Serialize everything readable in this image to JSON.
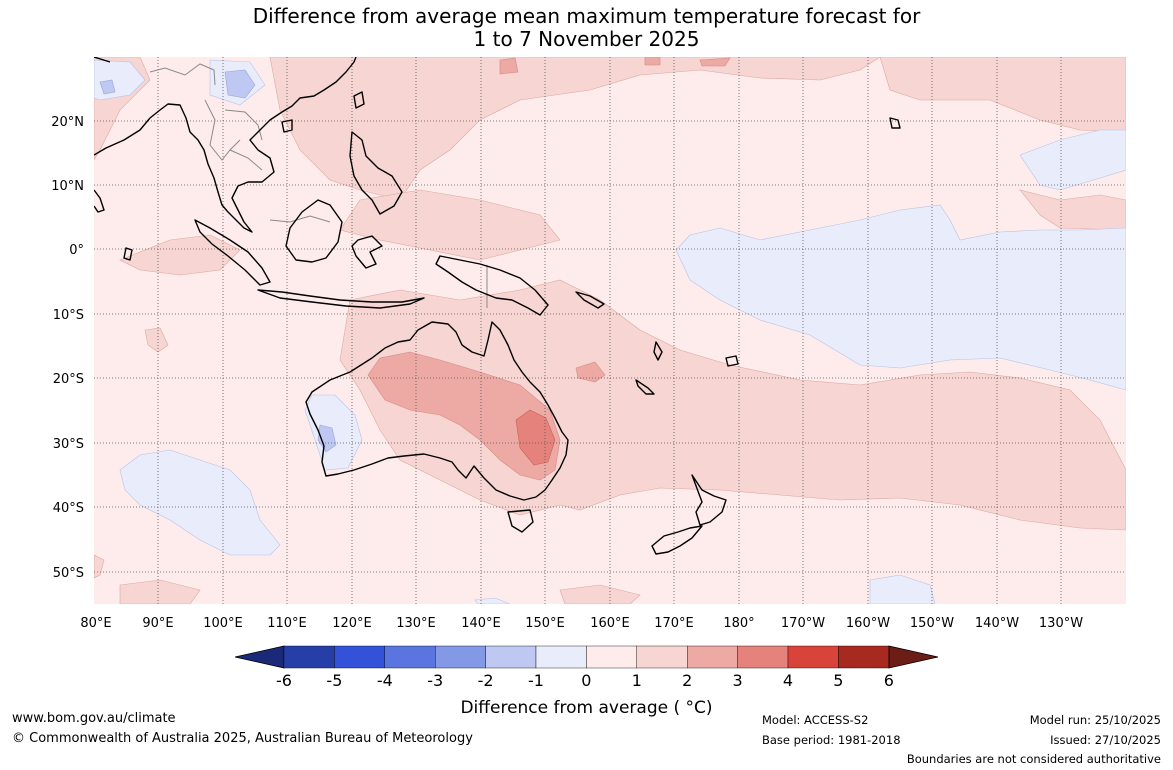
{
  "title": {
    "line1": "Difference from average mean maximum temperature forecast for",
    "line2": "1 to 7 November 2025"
  },
  "lat_labels": [
    "20°N",
    "10°N",
    "0°",
    "10°S",
    "20°S",
    "30°S",
    "40°S",
    "50°S"
  ],
  "lon_labels": [
    "80°E",
    "90°E",
    "100°E",
    "110°E",
    "120°E",
    "130°E",
    "140°E",
    "150°E",
    "160°E",
    "170°E",
    "180°",
    "170°W",
    "160°W",
    "150°W",
    "140°W",
    "130°W"
  ],
  "colorbar": {
    "ticks": [
      "-6",
      "-5",
      "-4",
      "-3",
      "-2",
      "-1",
      "0",
      "1",
      "2",
      "3",
      "4",
      "5",
      "6"
    ],
    "colors": [
      "#263fa8",
      "#3352d9",
      "#5a75e0",
      "#8399e6",
      "#bfc8f2",
      "#e8ecfb",
      "#fdeceb",
      "#f6d5d3",
      "#eda9a4",
      "#e4827b",
      "#d9443a",
      "#a8291f"
    ],
    "low_end_color": "#1a2a78",
    "high_end_color": "#6b1d16",
    "label": "Difference from average ( °C)"
  },
  "footer": {
    "website": "www.bom.gov.au/climate",
    "copyright": "© Commonwealth of Australia 2025, Australian Bureau of Meteorology",
    "model": "Model: ACCESS-S2",
    "base_period": "Base period: 1981-2018",
    "model_run": "Model run: 25/10/2025",
    "issued": "Issued: 27/10/2025",
    "disclaimer": "Boundaries are not considered authoritative"
  }
}
